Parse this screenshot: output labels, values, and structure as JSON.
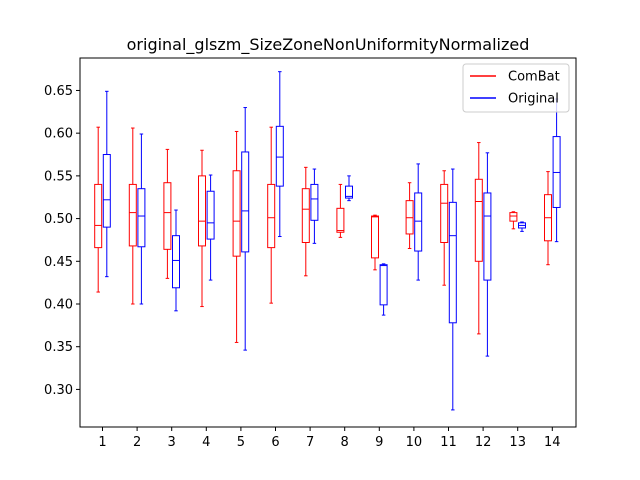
{
  "chart_data": {
    "type": "boxplot",
    "title": "original_glszm_SizeZoneNonUniformityNormalized",
    "xlabel": "",
    "ylabel": "",
    "categories": [
      "1",
      "2",
      "3",
      "4",
      "5",
      "6",
      "7",
      "8",
      "9",
      "10",
      "11",
      "12",
      "13",
      "14"
    ],
    "yticks": [
      "0.30",
      "0.35",
      "0.40",
      "0.45",
      "0.50",
      "0.55",
      "0.60",
      "0.65"
    ],
    "ylim": [
      0.256,
      0.688
    ],
    "grid": false,
    "legend_position": "top-right",
    "series": [
      {
        "name": "ComBat",
        "color": "#ff0000",
        "boxes": [
          {
            "min": 0.414,
            "q1": 0.466,
            "median": 0.492,
            "q3": 0.54,
            "max": 0.607
          },
          {
            "min": 0.4,
            "q1": 0.468,
            "median": 0.507,
            "q3": 0.54,
            "max": 0.606
          },
          {
            "min": 0.43,
            "q1": 0.464,
            "median": 0.507,
            "q3": 0.542,
            "max": 0.581
          },
          {
            "min": 0.397,
            "q1": 0.468,
            "median": 0.497,
            "q3": 0.55,
            "max": 0.58
          },
          {
            "min": 0.355,
            "q1": 0.456,
            "median": 0.497,
            "q3": 0.556,
            "max": 0.602
          },
          {
            "min": 0.401,
            "q1": 0.466,
            "median": 0.501,
            "q3": 0.54,
            "max": 0.607
          },
          {
            "min": 0.433,
            "q1": 0.472,
            "median": 0.511,
            "q3": 0.535,
            "max": 0.56
          },
          {
            "min": 0.478,
            "q1": 0.484,
            "median": 0.486,
            "q3": 0.512,
            "max": 0.54
          },
          {
            "min": 0.44,
            "q1": 0.454,
            "median": 0.502,
            "q3": 0.503,
            "max": 0.504
          },
          {
            "min": 0.465,
            "q1": 0.482,
            "median": 0.501,
            "q3": 0.521,
            "max": 0.542
          },
          {
            "min": 0.422,
            "q1": 0.472,
            "median": 0.518,
            "q3": 0.54,
            "max": 0.556
          },
          {
            "min": 0.365,
            "q1": 0.45,
            "median": 0.52,
            "q3": 0.546,
            "max": 0.589
          },
          {
            "min": 0.488,
            "q1": 0.497,
            "median": 0.503,
            "q3": 0.507,
            "max": 0.508
          },
          {
            "min": 0.446,
            "q1": 0.474,
            "median": 0.501,
            "q3": 0.528,
            "max": 0.555
          }
        ]
      },
      {
        "name": "Original",
        "color": "#0000ff",
        "boxes": [
          {
            "min": 0.432,
            "q1": 0.49,
            "median": 0.522,
            "q3": 0.575,
            "max": 0.649
          },
          {
            "min": 0.4,
            "q1": 0.467,
            "median": 0.503,
            "q3": 0.535,
            "max": 0.599
          },
          {
            "min": 0.392,
            "q1": 0.419,
            "median": 0.451,
            "q3": 0.48,
            "max": 0.51
          },
          {
            "min": 0.428,
            "q1": 0.476,
            "median": 0.495,
            "q3": 0.532,
            "max": 0.551
          },
          {
            "min": 0.346,
            "q1": 0.461,
            "median": 0.509,
            "q3": 0.578,
            "max": 0.63
          },
          {
            "min": 0.479,
            "q1": 0.538,
            "median": 0.572,
            "q3": 0.608,
            "max": 0.672
          },
          {
            "min": 0.471,
            "q1": 0.498,
            "median": 0.523,
            "q3": 0.54,
            "max": 0.558
          },
          {
            "min": 0.521,
            "q1": 0.524,
            "median": 0.526,
            "q3": 0.538,
            "max": 0.55
          },
          {
            "min": 0.387,
            "q1": 0.399,
            "median": 0.445,
            "q3": 0.446,
            "max": 0.447
          },
          {
            "min": 0.428,
            "q1": 0.462,
            "median": 0.497,
            "q3": 0.53,
            "max": 0.564
          },
          {
            "min": 0.276,
            "q1": 0.378,
            "median": 0.48,
            "q3": 0.519,
            "max": 0.558
          },
          {
            "min": 0.339,
            "q1": 0.428,
            "median": 0.503,
            "q3": 0.53,
            "max": 0.577
          },
          {
            "min": 0.485,
            "q1": 0.489,
            "median": 0.492,
            "q3": 0.495,
            "max": 0.496
          },
          {
            "min": 0.473,
            "q1": 0.513,
            "median": 0.554,
            "q3": 0.596,
            "max": 0.64
          }
        ]
      }
    ]
  }
}
